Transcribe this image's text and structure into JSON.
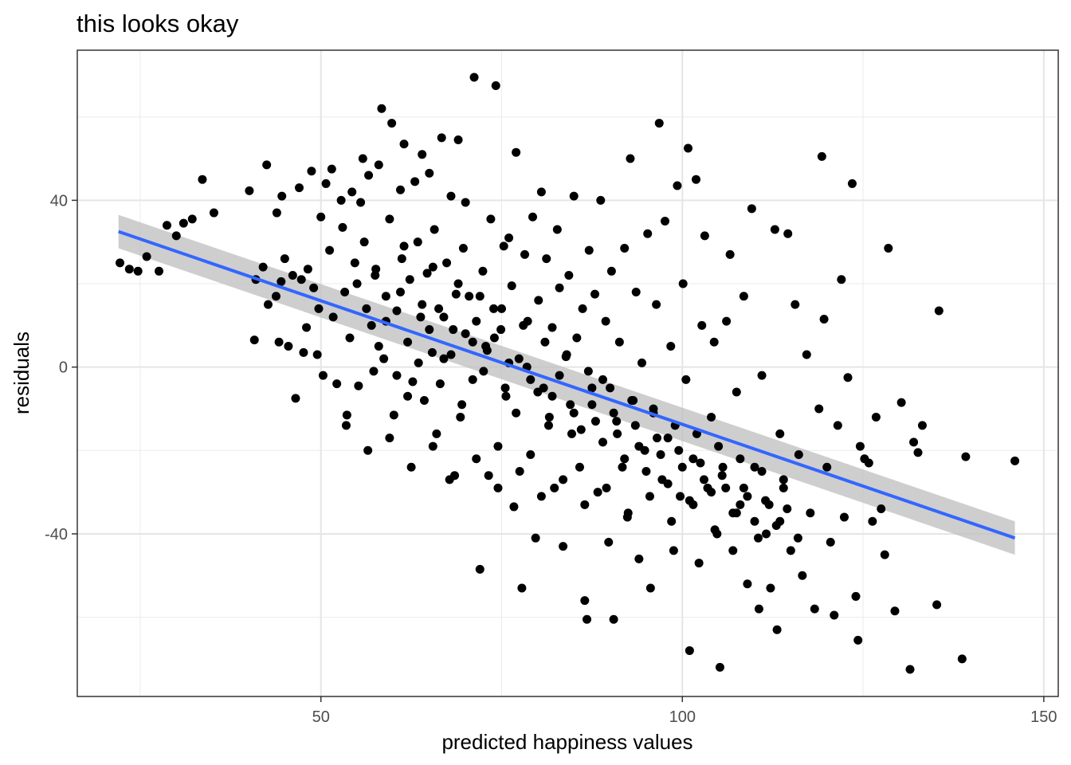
{
  "chart_data": {
    "type": "scatter",
    "title": "this looks okay",
    "xlabel": "predicted happiness values",
    "ylabel": "residuals",
    "xlim": [
      16.3,
      152.0
    ],
    "ylim": [
      -79.0,
      76.0
    ],
    "x_ticks": [
      50,
      100,
      150
    ],
    "y_ticks": [
      -40,
      0,
      40
    ],
    "x_tick_labels": [
      "50",
      "100",
      "150"
    ],
    "y_tick_labels": [
      "-40",
      "0",
      "40"
    ],
    "grid": true,
    "theme": "bw",
    "point_color": "#000000",
    "smooth": {
      "method": "lm",
      "color": "#3366FF",
      "band_color": "#BEBEBE",
      "x": [
        22.0,
        146.0
      ],
      "y": [
        32.5,
        -41.0
      ],
      "ci_lower": [
        28.5,
        -45.0
      ],
      "ci_upper": [
        36.5,
        -37.0
      ]
    },
    "points": [
      [
        22.2,
        25.0
      ],
      [
        23.5,
        23.5
      ],
      [
        24.7,
        23.0
      ],
      [
        25.9,
        26.5
      ],
      [
        27.6,
        23.0
      ],
      [
        28.7,
        34.0
      ],
      [
        30.0,
        31.5
      ],
      [
        31.0,
        34.5
      ],
      [
        32.2,
        35.5
      ],
      [
        33.6,
        45.0
      ],
      [
        35.2,
        37.0
      ],
      [
        40.1,
        42.3
      ],
      [
        40.8,
        6.5
      ],
      [
        41.0,
        21.0
      ],
      [
        42.0,
        24.0
      ],
      [
        42.5,
        48.5
      ],
      [
        42.7,
        15.0
      ],
      [
        43.8,
        17.0
      ],
      [
        43.9,
        37.0
      ],
      [
        44.2,
        6.0
      ],
      [
        44.5,
        20.5
      ],
      [
        44.6,
        41.0
      ],
      [
        45.0,
        26.0
      ],
      [
        45.5,
        5.0
      ],
      [
        46.1,
        22.0
      ],
      [
        46.5,
        -7.5
      ],
      [
        47.0,
        43.0
      ],
      [
        47.3,
        21.0
      ],
      [
        47.6,
        3.5
      ],
      [
        48.0,
        9.5
      ],
      [
        48.2,
        23.5
      ],
      [
        48.7,
        47.0
      ],
      [
        49.0,
        19.0
      ],
      [
        49.5,
        3.0
      ],
      [
        49.7,
        14.0
      ],
      [
        50.0,
        36.0
      ],
      [
        50.3,
        -2.0
      ],
      [
        50.7,
        44.0
      ],
      [
        51.2,
        28.0
      ],
      [
        51.5,
        47.5
      ],
      [
        51.7,
        12.0
      ],
      [
        52.2,
        -4.0
      ],
      [
        52.8,
        40.0
      ],
      [
        53.0,
        33.5
      ],
      [
        53.3,
        18.0
      ],
      [
        53.6,
        -11.5
      ],
      [
        54.0,
        7.0
      ],
      [
        54.3,
        42.0
      ],
      [
        54.7,
        25.0
      ],
      [
        55.0,
        20.0
      ],
      [
        55.2,
        -4.5
      ],
      [
        55.5,
        39.5
      ],
      [
        55.8,
        50.0
      ],
      [
        56.0,
        30.0
      ],
      [
        56.3,
        14.0
      ],
      [
        56.6,
        46.0
      ],
      [
        57.0,
        10.0
      ],
      [
        57.3,
        -1.0
      ],
      [
        57.6,
        23.5
      ],
      [
        58.0,
        48.5
      ],
      [
        58.4,
        62.0
      ],
      [
        58.7,
        2.0
      ],
      [
        59.0,
        17.0
      ],
      [
        59.5,
        35.5
      ],
      [
        59.8,
        58.5
      ],
      [
        60.1,
        -11.5
      ],
      [
        60.5,
        13.5
      ],
      [
        61.0,
        42.5
      ],
      [
        61.2,
        26.0
      ],
      [
        61.5,
        53.5
      ],
      [
        62.0,
        6.0
      ],
      [
        62.3,
        21.0
      ],
      [
        62.7,
        -3.5
      ],
      [
        63.0,
        44.5
      ],
      [
        63.4,
        30.0
      ],
      [
        63.8,
        12.0
      ],
      [
        64.0,
        51.0
      ],
      [
        64.3,
        -8.0
      ],
      [
        64.7,
        22.5
      ],
      [
        65.0,
        46.5
      ],
      [
        65.4,
        3.5
      ],
      [
        65.7,
        33.0
      ],
      [
        66.0,
        -16.0
      ],
      [
        66.3,
        14.0
      ],
      [
        66.7,
        55.0
      ],
      [
        67.0,
        2.0
      ],
      [
        67.4,
        25.0
      ],
      [
        67.8,
        -27.0
      ],
      [
        68.0,
        41.0
      ],
      [
        68.3,
        9.0
      ],
      [
        68.7,
        17.5
      ],
      [
        69.0,
        54.5
      ],
      [
        69.3,
        -12.0
      ],
      [
        69.7,
        28.5
      ],
      [
        70.0,
        39.5
      ],
      [
        70.5,
        17.0
      ],
      [
        71.2,
        69.5
      ],
      [
        71.0,
        -3.0
      ],
      [
        71.5,
        11.0
      ],
      [
        72.0,
        -48.5
      ],
      [
        72.4,
        23.0
      ],
      [
        72.8,
        5.0
      ],
      [
        73.2,
        -26.0
      ],
      [
        73.5,
        35.5
      ],
      [
        73.9,
        14.0
      ],
      [
        74.2,
        67.5
      ],
      [
        74.5,
        -19.0
      ],
      [
        74.9,
        9.0
      ],
      [
        75.3,
        29.0
      ],
      [
        75.6,
        -7.0
      ],
      [
        76.0,
        31.0
      ],
      [
        76.4,
        19.5
      ],
      [
        76.7,
        -33.5
      ],
      [
        77.0,
        51.5
      ],
      [
        77.4,
        2.0
      ],
      [
        77.8,
        -53.0
      ],
      [
        78.2,
        27.0
      ],
      [
        78.6,
        11.0
      ],
      [
        79.0,
        -21.0
      ],
      [
        79.3,
        36.0
      ],
      [
        79.7,
        -41.0
      ],
      [
        80.1,
        16.0
      ],
      [
        80.5,
        42.0
      ],
      [
        80.8,
        -5.0
      ],
      [
        81.2,
        26.0
      ],
      [
        81.6,
        -12.0
      ],
      [
        82.0,
        9.5
      ],
      [
        82.3,
        -29.0
      ],
      [
        82.7,
        33.0
      ],
      [
        83.0,
        19.0
      ],
      [
        83.5,
        -43.0
      ],
      [
        83.9,
        2.5
      ],
      [
        84.3,
        22.0
      ],
      [
        84.7,
        -16.0
      ],
      [
        85.0,
        41.0
      ],
      [
        85.4,
        7.0
      ],
      [
        85.8,
        -24.0
      ],
      [
        86.2,
        14.0
      ],
      [
        86.5,
        -56.0
      ],
      [
        86.8,
        -60.5
      ],
      [
        87.1,
        28.0
      ],
      [
        87.5,
        -9.0
      ],
      [
        87.9,
        17.5
      ],
      [
        88.3,
        -30.0
      ],
      [
        88.7,
        40.0
      ],
      [
        89.0,
        -3.0
      ],
      [
        89.4,
        11.0
      ],
      [
        89.8,
        -42.0
      ],
      [
        90.2,
        23.0
      ],
      [
        90.5,
        -60.5
      ],
      [
        90.9,
        -13.0
      ],
      [
        91.3,
        6.0
      ],
      [
        91.7,
        -24.0
      ],
      [
        92.0,
        28.5
      ],
      [
        92.4,
        -36.0
      ],
      [
        92.8,
        50.0
      ],
      [
        93.2,
        -8.0
      ],
      [
        93.6,
        18.0
      ],
      [
        94.0,
        -46.0
      ],
      [
        94.4,
        1.0
      ],
      [
        94.8,
        -20.0
      ],
      [
        95.2,
        32.0
      ],
      [
        95.6,
        -53.0
      ],
      [
        96.0,
        -10.0
      ],
      [
        96.4,
        15.0
      ],
      [
        96.8,
        58.5
      ],
      [
        97.2,
        -27.0
      ],
      [
        97.6,
        35.0
      ],
      [
        98.0,
        -17.0
      ],
      [
        98.4,
        5.0
      ],
      [
        98.8,
        -44.0
      ],
      [
        99.3,
        43.5
      ],
      [
        99.7,
        -31.0
      ],
      [
        100.1,
        20.0
      ],
      [
        100.5,
        -3.0
      ],
      [
        100.8,
        52.5
      ],
      [
        101.0,
        -68.0
      ],
      [
        101.5,
        -22.0
      ],
      [
        101.9,
        45.0
      ],
      [
        102.3,
        -47.0
      ],
      [
        102.7,
        10.0
      ],
      [
        103.1,
        31.5
      ],
      [
        103.5,
        -29.0
      ],
      [
        104.0,
        -12.0
      ],
      [
        104.4,
        6.0
      ],
      [
        104.8,
        -40.0
      ],
      [
        105.2,
        -72.0
      ],
      [
        105.6,
        -24.0
      ],
      [
        106.1,
        11.0
      ],
      [
        106.6,
        27.0
      ],
      [
        107.0,
        -44.0
      ],
      [
        107.5,
        -6.0
      ],
      [
        108.0,
        -33.0
      ],
      [
        108.5,
        17.0
      ],
      [
        109.0,
        -52.0
      ],
      [
        109.6,
        38.0
      ],
      [
        110.0,
        -24.0
      ],
      [
        110.6,
        -58.0
      ],
      [
        111.0,
        -2.0
      ],
      [
        111.6,
        -40.0
      ],
      [
        112.2,
        -53.0
      ],
      [
        112.8,
        33.0
      ],
      [
        113.1,
        -63.0
      ],
      [
        113.5,
        -16.0
      ],
      [
        114.0,
        -29.0
      ],
      [
        114.6,
        32.0
      ],
      [
        115.0,
        -44.0
      ],
      [
        115.6,
        15.0
      ],
      [
        116.1,
        -21.0
      ],
      [
        116.6,
        -50.0
      ],
      [
        117.2,
        3.0
      ],
      [
        117.7,
        -35.0
      ],
      [
        118.3,
        -58.0
      ],
      [
        118.9,
        -10.0
      ],
      [
        119.3,
        50.5
      ],
      [
        119.6,
        11.5
      ],
      [
        120.0,
        -24.0
      ],
      [
        120.5,
        -42.0
      ],
      [
        121.0,
        -59.5
      ],
      [
        121.5,
        -14.0
      ],
      [
        122.0,
        21.0
      ],
      [
        122.4,
        -36.0
      ],
      [
        122.9,
        -2.5
      ],
      [
        123.5,
        44.0
      ],
      [
        124.0,
        -55.0
      ],
      [
        124.3,
        -65.5
      ],
      [
        124.6,
        -19.0
      ],
      [
        125.2,
        -22.0
      ],
      [
        125.8,
        -23.0
      ],
      [
        126.3,
        -37.0
      ],
      [
        126.8,
        -12.0
      ],
      [
        127.5,
        -34.0
      ],
      [
        128.0,
        -45.0
      ],
      [
        128.5,
        28.5
      ],
      [
        129.4,
        -58.5
      ],
      [
        130.3,
        -8.5
      ],
      [
        131.5,
        -72.5
      ],
      [
        132.0,
        -18.0
      ],
      [
        132.6,
        -20.5
      ],
      [
        133.2,
        -14.0
      ],
      [
        135.5,
        13.5
      ],
      [
        135.2,
        -57.0
      ],
      [
        138.7,
        -70.0
      ],
      [
        139.2,
        -21.5
      ],
      [
        146.0,
        -22.5
      ],
      [
        58.0,
        5.0
      ],
      [
        60.5,
        -2.0
      ],
      [
        62.0,
        -7.0
      ],
      [
        63.5,
        1.0
      ],
      [
        65.0,
        9.0
      ],
      [
        66.5,
        -4.0
      ],
      [
        68.0,
        3.0
      ],
      [
        69.5,
        -9.0
      ],
      [
        71.0,
        6.0
      ],
      [
        72.5,
        -1.0
      ],
      [
        74.0,
        7.0
      ],
      [
        75.5,
        -5.0
      ],
      [
        77.0,
        -11.0
      ],
      [
        78.5,
        0.0
      ],
      [
        80.0,
        -6.0
      ],
      [
        81.5,
        -14.0
      ],
      [
        83.0,
        -2.0
      ],
      [
        84.5,
        -9.0
      ],
      [
        86.0,
        -15.0
      ],
      [
        87.5,
        -5.0
      ],
      [
        89.0,
        -18.0
      ],
      [
        90.5,
        -11.0
      ],
      [
        92.0,
        -22.0
      ],
      [
        93.5,
        -14.0
      ],
      [
        95.0,
        -25.0
      ],
      [
        96.5,
        -17.0
      ],
      [
        98.0,
        -28.0
      ],
      [
        99.5,
        -20.0
      ],
      [
        101.0,
        -32.0
      ],
      [
        102.5,
        -23.0
      ],
      [
        104.0,
        -30.0
      ],
      [
        105.5,
        -26.0
      ],
      [
        107.0,
        -35.0
      ],
      [
        108.5,
        -29.0
      ],
      [
        110.0,
        -37.0
      ],
      [
        111.5,
        -32.0
      ],
      [
        113.0,
        -38.0
      ],
      [
        114.5,
        -34.0
      ],
      [
        116.0,
        -41.0
      ],
      [
        59.0,
        11.0
      ],
      [
        61.0,
        18.0
      ],
      [
        64.0,
        15.0
      ],
      [
        67.0,
        12.0
      ],
      [
        70.0,
        8.0
      ],
      [
        73.0,
        4.0
      ],
      [
        76.0,
        1.0
      ],
      [
        79.0,
        -3.0
      ],
      [
        82.0,
        -7.0
      ],
      [
        85.0,
        -11.0
      ],
      [
        88.0,
        -13.0
      ],
      [
        91.0,
        -16.0
      ],
      [
        94.0,
        -19.0
      ],
      [
        97.0,
        -21.0
      ],
      [
        100.0,
        -24.0
      ],
      [
        103.0,
        -27.0
      ],
      [
        106.0,
        -29.0
      ],
      [
        109.0,
        -31.0
      ],
      [
        112.0,
        -33.0
      ],
      [
        57.5,
        22.0
      ],
      [
        61.5,
        29.0
      ],
      [
        65.5,
        24.0
      ],
      [
        69.0,
        20.0
      ],
      [
        72.0,
        17.0
      ],
      [
        75.0,
        14.0
      ],
      [
        78.0,
        10.0
      ],
      [
        81.0,
        6.0
      ],
      [
        84.0,
        3.0
      ],
      [
        87.0,
        -1.0
      ],
      [
        90.0,
        -5.0
      ],
      [
        93.0,
        -8.0
      ],
      [
        96.0,
        -11.0
      ],
      [
        99.0,
        -14.0
      ],
      [
        102.0,
        -16.0
      ],
      [
        105.0,
        -19.0
      ],
      [
        108.0,
        -22.0
      ],
      [
        111.0,
        -25.0
      ],
      [
        114.0,
        -27.0
      ],
      [
        53.5,
        -14.0
      ],
      [
        56.5,
        -20.0
      ],
      [
        59.5,
        -17.0
      ],
      [
        62.5,
        -24.0
      ],
      [
        65.5,
        -19.0
      ],
      [
        68.5,
        -26.0
      ],
      [
        71.5,
        -22.0
      ],
      [
        74.5,
        -29.0
      ],
      [
        77.5,
        -25.0
      ],
      [
        80.5,
        -31.0
      ],
      [
        83.5,
        -27.0
      ],
      [
        86.5,
        -33.0
      ],
      [
        89.5,
        -29.0
      ],
      [
        92.5,
        -35.0
      ],
      [
        95.5,
        -31.0
      ],
      [
        98.5,
        -37.0
      ],
      [
        101.5,
        -33.0
      ],
      [
        104.5,
        -39.0
      ],
      [
        107.5,
        -35.0
      ],
      [
        110.5,
        -41.0
      ],
      [
        113.5,
        -37.0
      ]
    ]
  }
}
